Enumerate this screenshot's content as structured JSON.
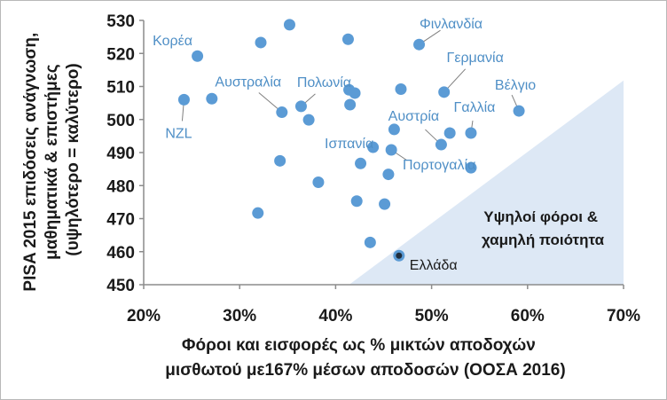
{
  "chart_data": {
    "type": "scatter",
    "xlabel": [
      "Φόροι και εισφορές ως % μικτών αποδοχών",
      "μισθωτού με167% μέσων αποδοσών (ΟΟΣΑ 2016)"
    ],
    "ylabel": [
      "PISA 2015 επιδόσεις ανάγνωση,",
      "μαθηματικά & επιστήμες",
      "(υψηλότερο = καλύτερο)"
    ],
    "xlim": [
      20,
      70
    ],
    "ylim": [
      450,
      530
    ],
    "xticks": [
      "20%",
      "30%",
      "40%",
      "50%",
      "60%",
      "70%"
    ],
    "xtick_values": [
      20,
      30,
      40,
      50,
      60,
      70
    ],
    "yticks": [
      "450",
      "460",
      "470",
      "480",
      "490",
      "500",
      "510",
      "520",
      "530"
    ],
    "ytick_values": [
      450,
      460,
      470,
      480,
      490,
      500,
      510,
      520,
      530
    ],
    "grid": false,
    "region_label": [
      "Υψηλοί φόροι &",
      "χαμηλή ποιότητα"
    ],
    "region_polygon": [
      [
        41.4,
        450
      ],
      [
        70,
        450
      ],
      [
        70,
        511.8
      ]
    ],
    "colors": {
      "points": "#5b9bd5",
      "highlight": "#1f2d3d",
      "labels": "#4f8fc6",
      "region": "#dde8f5"
    },
    "points": [
      {
        "x": 25.6,
        "y": 519.2,
        "label": "Κορέα"
      },
      {
        "x": 24.2,
        "y": 506.0,
        "label": "NZL"
      },
      {
        "x": 27.1,
        "y": 506.3
      },
      {
        "x": 32.2,
        "y": 523.3
      },
      {
        "x": 35.2,
        "y": 528.7
      },
      {
        "x": 41.3,
        "y": 524.3
      },
      {
        "x": 48.7,
        "y": 522.7,
        "label": "Φινλανδία"
      },
      {
        "x": 34.4,
        "y": 502.2,
        "label": "Αυστραλία"
      },
      {
        "x": 36.4,
        "y": 504.0,
        "label": "Πολωνία"
      },
      {
        "x": 37.2,
        "y": 499.9
      },
      {
        "x": 41.4,
        "y": 509.0
      },
      {
        "x": 42.0,
        "y": 508.0
      },
      {
        "x": 41.5,
        "y": 504.5
      },
      {
        "x": 46.8,
        "y": 509.2
      },
      {
        "x": 51.3,
        "y": 508.3,
        "label": "Γερμανία"
      },
      {
        "x": 59.1,
        "y": 502.6,
        "label": "Βέλγιο"
      },
      {
        "x": 54.1,
        "y": 495.9,
        "label": "Γαλλία"
      },
      {
        "x": 51.9,
        "y": 495.9
      },
      {
        "x": 51.0,
        "y": 492.4,
        "label": "Αυστρία"
      },
      {
        "x": 46.1,
        "y": 497.0
      },
      {
        "x": 43.9,
        "y": 491.6,
        "label": "Ισπανία"
      },
      {
        "x": 45.8,
        "y": 490.8,
        "label": "Πορτογαλία"
      },
      {
        "x": 54.1,
        "y": 485.4
      },
      {
        "x": 42.6,
        "y": 486.7
      },
      {
        "x": 45.5,
        "y": 483.4
      },
      {
        "x": 34.2,
        "y": 487.5
      },
      {
        "x": 38.2,
        "y": 481.0
      },
      {
        "x": 42.2,
        "y": 475.3
      },
      {
        "x": 45.1,
        "y": 474.4
      },
      {
        "x": 31.9,
        "y": 471.7
      },
      {
        "x": 43.6,
        "y": 462.8
      },
      {
        "x": 46.6,
        "y": 458.8,
        "label": "Ελλάδα",
        "highlight": true
      }
    ]
  }
}
